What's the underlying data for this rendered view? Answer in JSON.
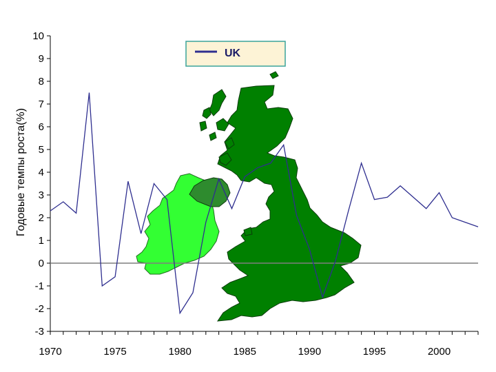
{
  "chart_data": {
    "type": "line",
    "title": "",
    "xlabel": "",
    "ylabel": "Годовые темпы роста(%)",
    "xlim": [
      1970,
      2003
    ],
    "ylim": [
      -3,
      10
    ],
    "x_ticks": [
      1970,
      1975,
      1980,
      1985,
      1990,
      1995,
      2000
    ],
    "y_ticks": [
      -3,
      -2,
      -1,
      0,
      1,
      2,
      3,
      4,
      5,
      6,
      7,
      8,
      9,
      10
    ],
    "grid": false,
    "legend_position": "top-center",
    "zero_line": true,
    "series": [
      {
        "name": "UK",
        "color": "#2e2e8f",
        "x": [
          1970,
          1971,
          1972,
          1973,
          1974,
          1975,
          1976,
          1977,
          1978,
          1979,
          1980,
          1981,
          1982,
          1983,
          1984,
          1985,
          1986,
          1987,
          1988,
          1989,
          1990,
          1991,
          1992,
          1993,
          1994,
          1995,
          1996,
          1997,
          1998,
          1999,
          2000,
          2001,
          2002,
          2003
        ],
        "y": [
          2.3,
          2.7,
          2.2,
          7.5,
          -1.0,
          -0.6,
          3.6,
          1.3,
          3.5,
          2.8,
          -2.2,
          -1.3,
          1.8,
          3.7,
          2.4,
          3.8,
          4.2,
          4.4,
          5.2,
          2.1,
          0.6,
          -1.5,
          0.1,
          2.3,
          4.4,
          2.8,
          2.9,
          3.4,
          2.9,
          2.4,
          3.1,
          2.0,
          1.8,
          1.6
        ]
      }
    ],
    "background_image": "british-isles-map"
  }
}
